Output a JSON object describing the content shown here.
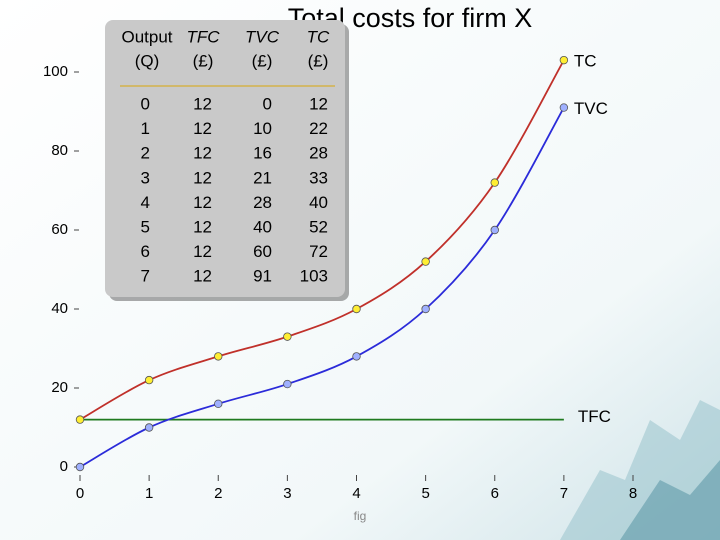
{
  "chart_data": {
    "type": "line",
    "title": "Total costs for firm X",
    "x": [
      0,
      1,
      2,
      3,
      4,
      5,
      6,
      7
    ],
    "series": [
      {
        "name": "TC",
        "color": "#c0302a",
        "marker_color": "#ffee33",
        "markers": true,
        "values": [
          12,
          22,
          28,
          33,
          40,
          52,
          72,
          103
        ]
      },
      {
        "name": "TVC",
        "color": "#2b2bd9",
        "marker_color": "#9fb0ff",
        "markers": true,
        "values": [
          0,
          10,
          16,
          21,
          28,
          40,
          60,
          91
        ]
      },
      {
        "name": "TFC",
        "color": "#1f7a1f",
        "markers": false,
        "values": [
          12,
          12,
          12,
          12,
          12,
          12,
          12,
          12
        ]
      }
    ],
    "xlim": [
      0,
      8
    ],
    "xticks": [
      0,
      1,
      2,
      3,
      4,
      5,
      6,
      7,
      8
    ],
    "ylim": [
      0,
      100
    ],
    "yticks": [
      0,
      20,
      40,
      60,
      80,
      100
    ],
    "grid": false
  },
  "table": {
    "header": [
      [
        "Output",
        "(Q)"
      ],
      [
        "TFC",
        "(£)"
      ],
      [
        "TVC",
        "(£)"
      ],
      [
        "TC",
        "(£)"
      ]
    ],
    "rows": [
      [
        0,
        12,
        0,
        12
      ],
      [
        1,
        12,
        10,
        22
      ],
      [
        2,
        12,
        16,
        28
      ],
      [
        3,
        12,
        21,
        33
      ],
      [
        4,
        12,
        28,
        40
      ],
      [
        5,
        12,
        40,
        52
      ],
      [
        6,
        12,
        60,
        72
      ],
      [
        7,
        12,
        91,
        103
      ]
    ]
  },
  "caption": "fig"
}
